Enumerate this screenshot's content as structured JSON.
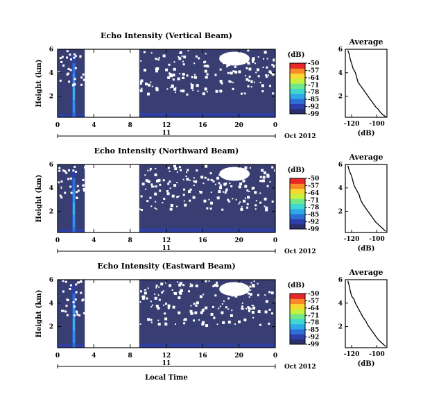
{
  "colors": {
    "background_fill": "#383e72",
    "missing": "#ffffff",
    "colormap": [
      "#2b2f6e",
      "#2d3fa8",
      "#2e6fd6",
      "#2fa8e8",
      "#3fd8d0",
      "#6fe88a",
      "#c8f040",
      "#f8d830",
      "#f88a28",
      "#e82828"
    ]
  },
  "chart_data": [
    {
      "type": "heatmap",
      "title": "Echo Intensity (Vertical Beam)",
      "ylabel": "Height (km)",
      "xlabel": "",
      "x_ticks": [
        "0",
        "4",
        "8",
        "12",
        "16",
        "20",
        "0"
      ],
      "y_ticks": [
        "6",
        "4",
        "2"
      ],
      "xlim": [
        0,
        24
      ],
      "ylim": [
        0.2,
        6
      ],
      "date_label": "11",
      "date_suffix": "Oct 2012",
      "missing_span_hours": [
        3,
        9
      ],
      "colorbar": {
        "title": "(dB)",
        "ticks": [
          "-50",
          "-57",
          "-64",
          "-71",
          "-78",
          "-85",
          "-92",
          "-99"
        ],
        "range": [
          -99,
          -50
        ]
      },
      "average": {
        "title": "Average",
        "xlabel": "(dB)",
        "x_ticks": [
          "-120",
          "-100"
        ],
        "y_ticks": [
          "6",
          "4",
          "2"
        ],
        "xlim": [
          -125,
          -92
        ],
        "ylim": [
          0.2,
          6
        ],
        "profile": [
          [
            -123,
            5.9
          ],
          [
            -122,
            5.6
          ],
          [
            -121,
            5.1
          ],
          [
            -120,
            4.8
          ],
          [
            -119,
            4.4
          ],
          [
            -117,
            4.0
          ],
          [
            -116,
            3.6
          ],
          [
            -115,
            3.2
          ],
          [
            -113,
            2.9
          ],
          [
            -111,
            2.6
          ],
          [
            -109,
            2.3
          ],
          [
            -107,
            2.0
          ],
          [
            -105,
            1.7
          ],
          [
            -103,
            1.4
          ],
          [
            -101,
            1.1
          ],
          [
            -99,
            0.9
          ],
          [
            -97,
            0.6
          ],
          [
            -95,
            0.4
          ],
          [
            -93,
            0.25
          ]
        ]
      }
    },
    {
      "type": "heatmap",
      "title": "Echo Intensity (Northward Beam)",
      "ylabel": "Height (km)",
      "xlabel": "",
      "x_ticks": [
        "0",
        "4",
        "8",
        "12",
        "16",
        "20",
        "0"
      ],
      "y_ticks": [
        "6",
        "4",
        "2"
      ],
      "xlim": [
        0,
        24
      ],
      "ylim": [
        0.2,
        6
      ],
      "date_label": "11",
      "date_suffix": "Oct 2012",
      "missing_span_hours": [
        3,
        9
      ],
      "colorbar": {
        "title": "(dB)",
        "ticks": [
          "-50",
          "-57",
          "-64",
          "-71",
          "-78",
          "-85",
          "-92",
          "-99"
        ],
        "range": [
          -99,
          -50
        ]
      },
      "average": {
        "title": "Average",
        "xlabel": "(dB)",
        "x_ticks": [
          "-120",
          "-100"
        ],
        "y_ticks": [
          "6",
          "4",
          "2"
        ],
        "xlim": [
          -125,
          -92
        ],
        "ylim": [
          0.2,
          6
        ],
        "profile": [
          [
            -123,
            5.9
          ],
          [
            -122,
            5.5
          ],
          [
            -120,
            5.0
          ],
          [
            -119,
            4.6
          ],
          [
            -118,
            4.2
          ],
          [
            -116,
            3.8
          ],
          [
            -114,
            3.4
          ],
          [
            -113,
            3.0
          ],
          [
            -111,
            2.6
          ],
          [
            -109,
            2.3
          ],
          [
            -107,
            2.0
          ],
          [
            -105,
            1.7
          ],
          [
            -103,
            1.4
          ],
          [
            -101,
            1.1
          ],
          [
            -99,
            0.9
          ],
          [
            -97,
            0.7
          ],
          [
            -95,
            0.5
          ],
          [
            -93,
            0.3
          ]
        ]
      }
    },
    {
      "type": "heatmap",
      "title": "Echo Intensity (Eastward Beam)",
      "ylabel": "Height (km)",
      "xlabel": "Local Time",
      "x_ticks": [
        "0",
        "4",
        "8",
        "12",
        "16",
        "20",
        "0"
      ],
      "y_ticks": [
        "6",
        "4",
        "2"
      ],
      "xlim": [
        0,
        24
      ],
      "ylim": [
        0.2,
        6
      ],
      "date_label": "11",
      "date_suffix": "Oct 2012",
      "missing_span_hours": [
        3,
        9
      ],
      "colorbar": {
        "title": "(dB)",
        "ticks": [
          "-50",
          "-57",
          "-64",
          "-71",
          "-78",
          "-85",
          "-92",
          "-99"
        ],
        "range": [
          -99,
          -50
        ]
      },
      "average": {
        "title": "Average",
        "xlabel": "(dB)",
        "x_ticks": [
          "-120",
          "-100"
        ],
        "y_ticks": [
          "6",
          "4",
          "2"
        ],
        "xlim": [
          -125,
          -92
        ],
        "ylim": [
          0.2,
          6
        ],
        "profile": [
          [
            -123,
            5.9
          ],
          [
            -122,
            5.5
          ],
          [
            -121,
            5.0
          ],
          [
            -120,
            4.6
          ],
          [
            -118,
            4.3
          ],
          [
            -117,
            4.0
          ],
          [
            -115,
            3.6
          ],
          [
            -113,
            3.2
          ],
          [
            -111,
            2.8
          ],
          [
            -109,
            2.5
          ],
          [
            -107,
            2.1
          ],
          [
            -105,
            1.8
          ],
          [
            -103,
            1.5
          ],
          [
            -101,
            1.2
          ],
          [
            -99,
            0.9
          ],
          [
            -97,
            0.7
          ],
          [
            -95,
            0.5
          ],
          [
            -93,
            0.3
          ]
        ]
      }
    }
  ]
}
